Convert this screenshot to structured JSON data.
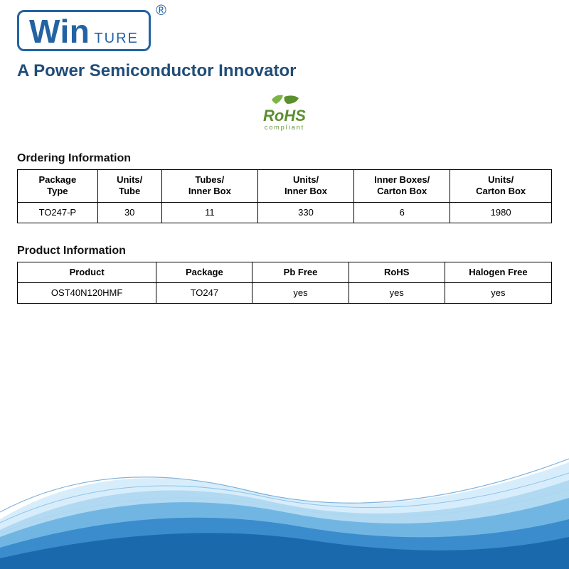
{
  "branding": {
    "logo_main": "Win",
    "logo_sub": "TURE",
    "registered_mark": "®",
    "tagline": "A Power Semiconductor Innovator",
    "logo_color": "#2463a3",
    "tagline_color": "#1f4d78"
  },
  "rohs": {
    "text_top": "RoHS",
    "text_bot": "compliant",
    "leaf_colors": [
      "#7bb642",
      "#5a8f2e"
    ],
    "text_color": "#5a8f2e"
  },
  "ordering_info": {
    "title": "Ordering Information",
    "columns": [
      "Package\nType",
      "Units/\nTube",
      "Tubes/\nInner Box",
      "Units/\nInner Box",
      "Inner Boxes/\nCarton Box",
      "Units/\nCarton Box"
    ],
    "rows": [
      [
        "TO247-P",
        "30",
        "11",
        "330",
        "6",
        "1980"
      ]
    ],
    "border_color": "#000000",
    "background_color": "#ffffff"
  },
  "product_info": {
    "title": "Product Information",
    "columns": [
      "Product",
      "Package",
      "Pb Free",
      "RoHS",
      "Halogen Free"
    ],
    "rows": [
      [
        "OST40N120HMF",
        "TO247",
        "yes",
        "yes",
        "yes"
      ]
    ],
    "border_color": "#000000",
    "background_color": "#ffffff"
  },
  "waves": {
    "colors": [
      "#0d5aa0",
      "#2a7ec4",
      "#5ca9de",
      "#a7d3f0",
      "#d4ebfb"
    ]
  }
}
